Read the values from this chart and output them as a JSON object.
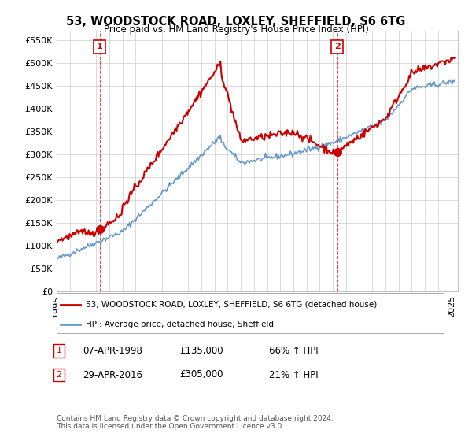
{
  "title": "53, WOODSTOCK ROAD, LOXLEY, SHEFFIELD, S6 6TG",
  "subtitle": "Price paid vs. HM Land Registry's House Price Index (HPI)",
  "ylabel_ticks": [
    "£0",
    "£50K",
    "£100K",
    "£150K",
    "£200K",
    "£250K",
    "£300K",
    "£350K",
    "£400K",
    "£450K",
    "£500K",
    "£550K"
  ],
  "ytick_vals": [
    0,
    50000,
    100000,
    150000,
    200000,
    250000,
    300000,
    350000,
    400000,
    450000,
    500000,
    550000
  ],
  "sale1": {
    "date_label": "07-APR-1998",
    "price": 135000,
    "pct": "66%",
    "direction": "↑",
    "x": 1998.27
  },
  "sale2": {
    "date_label": "29-APR-2016",
    "price": 305000,
    "pct": "21%",
    "direction": "↑",
    "x": 2016.33
  },
  "sale1_color": "#cc0000",
  "sale2_color": "#cc0000",
  "hpi_color": "#6699cc",
  "property_color": "#cc0000",
  "vline_color": "#cc0000",
  "grid_color": "#cccccc",
  "background_color": "#ffffff",
  "legend_property": "53, WOODSTOCK ROAD, LOXLEY, SHEFFIELD, S6 6TG (detached house)",
  "legend_hpi": "HPI: Average price, detached house, Sheffield",
  "footer": "Contains HM Land Registry data © Crown copyright and database right 2024.\nThis data is licensed under the Open Government Licence v3.0.",
  "xlim": [
    1995.0,
    2025.5
  ],
  "ylim": [
    0,
    570000
  ]
}
